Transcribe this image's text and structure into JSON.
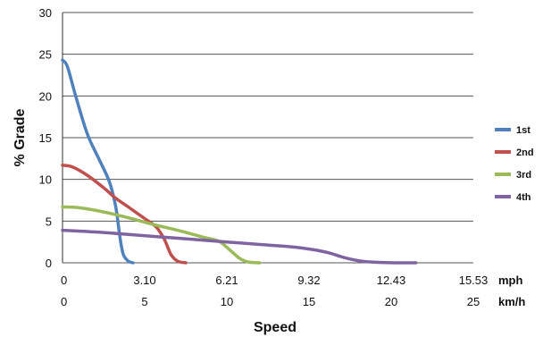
{
  "chart_data": {
    "type": "line",
    "ylabel": "% Grade",
    "xlabel": "Speed",
    "ylim": [
      0,
      30
    ],
    "xlim": [
      0,
      25
    ],
    "y_ticks": [
      0,
      5,
      10,
      15,
      20,
      25,
      30
    ],
    "x_ticks_mph": {
      "unit": "mph",
      "positions_kmh": [
        0,
        5,
        10,
        15,
        20,
        25
      ],
      "labels": [
        "0",
        "3.10",
        "6.21",
        "9.32",
        "12.43",
        "15.53"
      ]
    },
    "x_ticks_kmh": {
      "unit": "km/h",
      "labels": [
        "0",
        "5",
        "10",
        "15",
        "20",
        "25"
      ]
    },
    "grid": "horizontal",
    "legend": "right",
    "series": [
      {
        "name": "1st",
        "color": "#4f81bd",
        "x": [
          0,
          0.3,
          0.8,
          1.5,
          2.2,
          2.8,
          3.1,
          3.3,
          3.5,
          3.7,
          4.0,
          4.3
        ],
        "y": [
          24.3,
          23.5,
          20.0,
          15.5,
          12.5,
          10.0,
          8.0,
          6.0,
          3.0,
          1.0,
          0.2,
          0.0
        ]
      },
      {
        "name": "2nd",
        "color": "#c0504d",
        "x": [
          0,
          0.6,
          1.5,
          2.5,
          3.2,
          4.0,
          5.0,
          5.7,
          6.2,
          6.6,
          7.0,
          7.5
        ],
        "y": [
          11.7,
          11.5,
          10.5,
          9.0,
          7.8,
          6.7,
          5.3,
          4.3,
          2.8,
          1.0,
          0.2,
          0.0
        ]
      },
      {
        "name": "3rd",
        "color": "#9bbb59",
        "x": [
          0,
          1.0,
          2.5,
          4.0,
          5.5,
          7.0,
          8.5,
          9.5,
          10.2,
          10.8,
          11.3,
          12.0
        ],
        "y": [
          6.7,
          6.6,
          6.1,
          5.4,
          4.6,
          3.9,
          3.1,
          2.6,
          1.5,
          0.5,
          0.1,
          0.0
        ]
      },
      {
        "name": "4th",
        "color": "#8064a2",
        "x": [
          0,
          2.0,
          4.0,
          6.0,
          8.0,
          10.0,
          12.0,
          14.0,
          15.2,
          16.2,
          17.2,
          18.2,
          19.2,
          20.2,
          21.5
        ],
        "y": [
          3.9,
          3.7,
          3.4,
          3.1,
          2.8,
          2.5,
          2.2,
          1.9,
          1.6,
          1.2,
          0.6,
          0.2,
          0.05,
          0.0,
          0.0
        ]
      }
    ]
  }
}
